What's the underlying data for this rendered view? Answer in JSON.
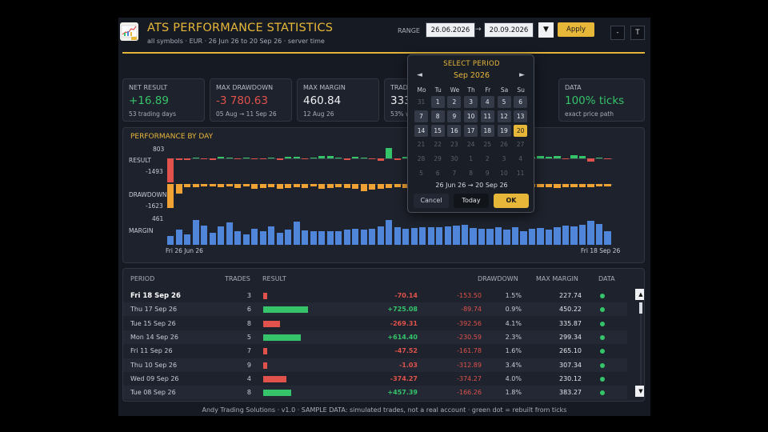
{
  "header": {
    "title": "ATS PERFORMANCE STATISTICS",
    "subtitle": "all symbols  ·  EUR  ·  26 Jun 26 to 20 Sep 26  ·  server time",
    "range_label": "RANGE",
    "date_from": "26.06.2026",
    "date_to": "20.09.2026",
    "arrow": "→",
    "dropdown_glyph": "▼",
    "apply_label": "Apply",
    "minus_label": "-",
    "t_label": "T"
  },
  "cards": [
    {
      "label": "NET RESULT",
      "value": "+16.89",
      "sub": "53 trading days",
      "color": "#35c46a"
    },
    {
      "label": "MAX DRAWDOWN",
      "value": "-3 780.63",
      "sub": "05 Aug → 11 Sep 26",
      "color": "#e0524b"
    },
    {
      "label": "MAX MARGIN",
      "value": "460.84",
      "sub": "12 Aug 26",
      "color": "#eef0f4"
    },
    {
      "label": "TRAD",
      "value": "333",
      "sub": "53% w",
      "color": "#eef0f4"
    },
    {
      "label": "DATA",
      "value": "100% ticks",
      "sub": "exact price path",
      "color": "#35c46a"
    }
  ],
  "perf": {
    "title": "PERFORMANCE BY DAY",
    "result_label": "RESULT",
    "result_max": "803",
    "result_min": "-1493",
    "drawdown_label": "DRAWDOWN",
    "drawdown_min": "-1623",
    "margin_label": "MARGIN",
    "margin_max": "461",
    "x_start": "Fri 26 Jun 26",
    "x_end": "Fri 18 Sep 26"
  },
  "chart_data": {
    "type": "bar",
    "series": [
      {
        "name": "RESULT",
        "values": [
          -1493,
          -120,
          -90,
          60,
          -70,
          -80,
          120,
          60,
          -50,
          80,
          -30,
          -60,
          40,
          -120,
          110,
          130,
          -40,
          90,
          180,
          160,
          70,
          -90,
          120,
          80,
          -60,
          -150,
          803,
          -80,
          120,
          90,
          -70,
          60,
          120,
          -50,
          80,
          -40,
          -30,
          120,
          160,
          -70,
          60,
          -1000,
          -150,
          100,
          200,
          150,
          180,
          -1,
          250,
          200,
          -200,
          80,
          -70
        ]
      },
      {
        "name": "DRAWDOWN",
        "values": [
          -1623,
          -650,
          -220,
          -240,
          -150,
          -180,
          -200,
          -170,
          -280,
          -160,
          -300,
          -260,
          -210,
          -300,
          -260,
          -230,
          -250,
          -170,
          -350,
          -270,
          -210,
          -260,
          -300,
          -460,
          -380,
          -300,
          -290,
          -220,
          -280,
          -250,
          -210,
          -330,
          -350,
          -240,
          -250,
          -280,
          -310,
          -200,
          -220,
          -280,
          -300,
          -900,
          -180,
          -230,
          -200,
          -190,
          -250,
          -210,
          -200,
          -240,
          -220,
          -160,
          -150
        ]
      },
      {
        "name": "MARGIN",
        "values": [
          160,
          280,
          200,
          461,
          350,
          230,
          340,
          410,
          250,
          200,
          300,
          260,
          340,
          220,
          280,
          430,
          270,
          250,
          260,
          250,
          260,
          280,
          300,
          280,
          290,
          340,
          460,
          330,
          290,
          310,
          320,
          330,
          330,
          340,
          350,
          370,
          310,
          300,
          290,
          330,
          280,
          320,
          260,
          300,
          310,
          280,
          320,
          350,
          340,
          370,
          440,
          380,
          250
        ]
      }
    ],
    "xlabel_start": "Fri 26 Jun 26",
    "xlabel_end": "Fri 18 Sep 26"
  },
  "table": {
    "headers": {
      "period": "PERIOD",
      "trades": "TRADES",
      "result": "RESULT",
      "drawdown": "DRAWDOWN",
      "max_margin": "MAX MARGIN",
      "data": "DATA"
    },
    "rows": [
      {
        "period": "Fri 18 Sep 26",
        "trades": "3",
        "result": "-70.14",
        "value": -70.14,
        "drawdown": "-153.50",
        "pct": "1.5%",
        "margin": "227.74",
        "bold": true
      },
      {
        "period": "Thu 17 Sep 26",
        "trades": "6",
        "result": "+725.08",
        "value": 725.08,
        "drawdown": "-89.74",
        "pct": "0.9%",
        "margin": "450.22"
      },
      {
        "period": "Tue 15 Sep 26",
        "trades": "8",
        "result": "-269.31",
        "value": -269.31,
        "drawdown": "-392.56",
        "pct": "4.1%",
        "margin": "335.87"
      },
      {
        "period": "Mon 14 Sep 26",
        "trades": "5",
        "result": "+614.40",
        "value": 614.4,
        "drawdown": "-230.59",
        "pct": "2.3%",
        "margin": "299.34"
      },
      {
        "period": "Fri 11 Sep 26",
        "trades": "7",
        "result": "-47.52",
        "value": -47.52,
        "drawdown": "-161.78",
        "pct": "1.6%",
        "margin": "265.10"
      },
      {
        "period": "Thu 10 Sep 26",
        "trades": "9",
        "result": "-1.03",
        "value": -1.03,
        "drawdown": "-312.89",
        "pct": "3.4%",
        "margin": "307.34"
      },
      {
        "period": "Wed 09 Sep 26",
        "trades": "4",
        "result": "-374.27",
        "value": -374.27,
        "drawdown": "-374.27",
        "pct": "4.0%",
        "margin": "230.12"
      },
      {
        "period": "Tue 08 Sep 26",
        "trades": "8",
        "result": "+457.39",
        "value": 457.39,
        "drawdown": "-166.26",
        "pct": "1.8%",
        "margin": "383.27"
      }
    ],
    "scroll_up": "▲",
    "scroll_down": "▼"
  },
  "footer": "Andy Trading Solutions  ·  v1.0  ·  SAMPLE DATA: simulated trades, not a real account  ·  green dot = rebuilt from ticks",
  "calendar": {
    "title": "SELECT PERIOD",
    "month": "Sep 2026",
    "prev": "◄",
    "next": "►",
    "dow": [
      "Mo",
      "Tu",
      "We",
      "Th",
      "Fr",
      "Sa",
      "Su"
    ],
    "weeks": [
      [
        "31",
        "1",
        "2",
        "3",
        "4",
        "5",
        "6"
      ],
      [
        "7",
        "8",
        "9",
        "10",
        "11",
        "12",
        "13"
      ],
      [
        "14",
        "15",
        "16",
        "17",
        "18",
        "19",
        "20"
      ],
      [
        "21",
        "22",
        "23",
        "24",
        "25",
        "26",
        "27"
      ],
      [
        "28",
        "29",
        "30",
        "1",
        "2",
        "3",
        "4"
      ],
      [
        "5",
        "6",
        "7",
        "8",
        "9",
        "10",
        "11"
      ]
    ],
    "selected": "20",
    "range": "26 Jun 26  →  20 Sep 26",
    "cancel": "Cancel",
    "today": "Today",
    "ok": "OK"
  },
  "colors": {
    "gold": "#e7b73a",
    "green": "#35c46a",
    "red": "#e0524b",
    "orange": "#f0a334",
    "blue": "#4f86d9"
  }
}
